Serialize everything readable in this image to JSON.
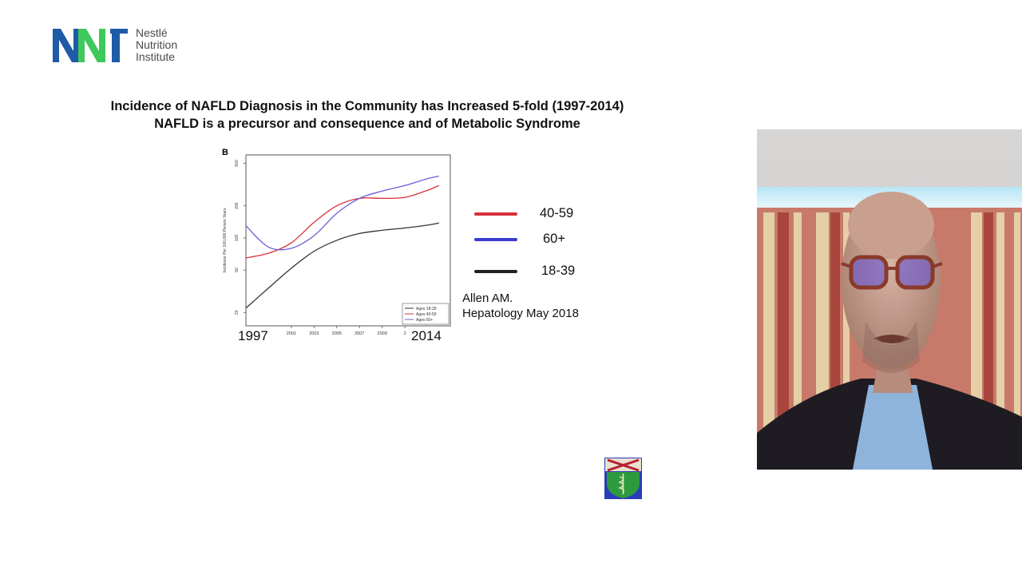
{
  "logo": {
    "mark": "NNI",
    "lines": [
      "Nestlé",
      "Nutrition",
      "Institute"
    ],
    "colors": {
      "blue": "#1f5aa6",
      "green": "#3fc85c"
    }
  },
  "slide": {
    "title": "Incidence of NAFLD Diagnosis in the Community has Increased 5-fold (1997-2014)",
    "subtitle": "NAFLD is a precursor and consequence and of Metabolic Syndrome",
    "panel_label": "B",
    "year_start": "1997",
    "year_end": "2014",
    "citation": [
      "Allen AM.",
      "Hepatology May 2018"
    ],
    "big_legend": [
      {
        "label": "40-59",
        "color": "#d8303c"
      },
      {
        "label": "60+",
        "color": "#3b3bd0"
      },
      {
        "label": "18-39",
        "color": "#222222"
      }
    ]
  },
  "chart_data": {
    "type": "line",
    "ylabel": "Incidence Per 100,000 Person Years",
    "yscale": "log",
    "ylim": [
      15,
      600
    ],
    "xlim": [
      1997,
      2015
    ],
    "yticks": [
      20,
      50,
      100,
      200,
      500
    ],
    "xticks": [
      "2001",
      "2003",
      "2005",
      "2007",
      "2009",
      "2"
    ],
    "legend_position": "bottom-right",
    "series": [
      {
        "name": "Ages 18-39",
        "color": "#333333",
        "x": [
          1997,
          1999,
          2001,
          2003,
          2005,
          2007,
          2009,
          2011,
          2013,
          2014
        ],
        "values": [
          22,
          34,
          52,
          75,
          95,
          110,
          118,
          124,
          132,
          138
        ]
      },
      {
        "name": "Ages 40-59",
        "color": "#d8303c",
        "x": [
          1997,
          1999,
          2001,
          2003,
          2005,
          2007,
          2009,
          2011,
          2013,
          2014
        ],
        "values": [
          65,
          72,
          90,
          140,
          200,
          235,
          235,
          240,
          280,
          310
        ]
      },
      {
        "name": "Ages 60+",
        "color": "#6a5fd8",
        "x": [
          1997,
          1999,
          2001,
          2003,
          2005,
          2007,
          2009,
          2011,
          2013,
          2014
        ],
        "values": [
          130,
          82,
          80,
          105,
          170,
          235,
          275,
          310,
          360,
          380
        ]
      }
    ]
  }
}
